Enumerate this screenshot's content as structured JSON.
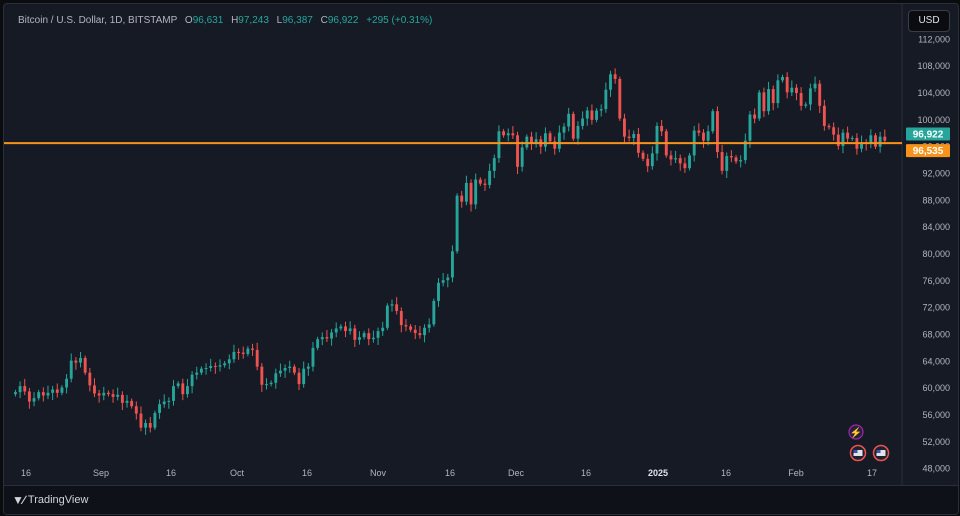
{
  "header": {
    "symbol": "Bitcoin / U.S. Dollar, 1D, BITSTAMP",
    "o_label": "O",
    "o_value": "96,631",
    "h_label": "H",
    "h_value": "97,243",
    "l_label": "L",
    "l_value": "96,387",
    "c_label": "C",
    "c_value": "96,922",
    "change": "+295 (+0.31%)"
  },
  "currency_button": "USD",
  "brand": "TradingView",
  "colors": {
    "up": "#26a69a",
    "down": "#ef5350",
    "hline": "#f7931a",
    "last": "#26a69a"
  },
  "chart_data": {
    "type": "candlestick",
    "y_range": [
      46000,
      114000
    ],
    "y_ticks": [
      "112,000",
      "108,000",
      "104,000",
      "100,000",
      "96,000",
      "92,000",
      "88,000",
      "84,000",
      "80,000",
      "76,000",
      "72,000",
      "68,000",
      "64,000",
      "60,000",
      "56,000",
      "52,000",
      "48,000"
    ],
    "x_ticks": [
      "16",
      "Sep",
      "16",
      "Oct",
      "16",
      "Nov",
      "16",
      "Dec",
      "16",
      "2025",
      "16",
      "Feb",
      "17"
    ],
    "last_price": 96922,
    "last_price_label": "96,922",
    "horizontal_line": 96535,
    "horizontal_line_label": "96,535",
    "closes": [
      59400,
      60300,
      59500,
      58000,
      58500,
      59400,
      58900,
      59300,
      59800,
      59300,
      60100,
      61400,
      64100,
      63800,
      64500,
      62300,
      60400,
      59200,
      58900,
      59300,
      59100,
      58700,
      59000,
      57800,
      58100,
      57300,
      56200,
      54100,
      54800,
      54100,
      56300,
      57600,
      58000,
      58100,
      60300,
      60700,
      59100,
      60300,
      62000,
      62300,
      62900,
      63000,
      63300,
      63200,
      63400,
      63700,
      64300,
      65400,
      65300,
      65100,
      65900,
      65700,
      63200,
      60500,
      60600,
      60800,
      62200,
      62600,
      63000,
      63200,
      62300,
      60600,
      62900,
      63200,
      66000,
      67300,
      67600,
      67400,
      68300,
      68900,
      69200,
      68500,
      68900,
      67200,
      67600,
      68200,
      67300,
      67500,
      68500,
      69000,
      72300,
      72500,
      71500,
      69400,
      69200,
      68700,
      68200,
      67900,
      69000,
      69500,
      73000,
      75700,
      76100,
      76500,
      80400,
      88700,
      87800,
      90600,
      87400,
      91100,
      90500,
      90300,
      92400,
      94300,
      98300,
      97700,
      98000,
      97700,
      93000,
      95900,
      97500,
      96400,
      97100,
      96000,
      98000,
      96800,
      95700,
      98100,
      99000,
      100900,
      97200,
      99100,
      100200,
      101400,
      100000,
      101400,
      101600,
      104500,
      106800,
      106100,
      100200,
      97500,
      97300,
      97900,
      95100,
      94200,
      93100,
      95000,
      99100,
      98300,
      94700,
      94100,
      94300,
      93500,
      92800,
      94700,
      98400,
      98100,
      96900,
      98300,
      101300,
      95200,
      92400,
      94600,
      94400,
      93800,
      94000,
      96900,
      100800,
      100200,
      104100,
      101300,
      104600,
      102500,
      105900,
      106400,
      104100,
      104800,
      104000,
      102100,
      102300,
      104700,
      105400,
      102100,
      99100,
      98900,
      97800,
      96100,
      98100,
      97200,
      97300,
      95700,
      96600,
      96500,
      97700,
      96000,
      97500,
      96900
    ],
    "direction_pattern": "d"
  }
}
